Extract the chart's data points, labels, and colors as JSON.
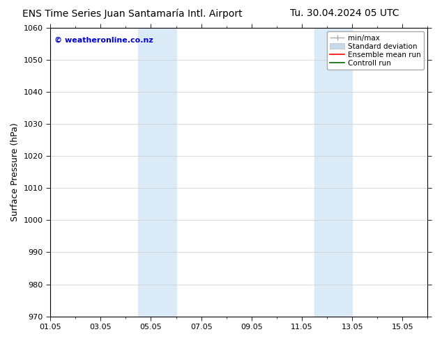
{
  "title_left": "ENS Time Series Juan Santamaría Intl. Airport",
  "title_right": "Tu. 30.04.2024 05 UTC",
  "ylabel": "Surface Pressure (hPa)",
  "ylim": [
    970,
    1060
  ],
  "yticks": [
    970,
    980,
    990,
    1000,
    1010,
    1020,
    1030,
    1040,
    1050,
    1060
  ],
  "xtick_labels": [
    "01.05",
    "03.05",
    "05.05",
    "07.05",
    "09.05",
    "11.05",
    "13.05",
    "15.05"
  ],
  "xtick_positions": [
    0,
    2,
    4,
    6,
    8,
    10,
    12,
    14
  ],
  "xlim": [
    0,
    15
  ],
  "shaded_regions": [
    {
      "x_start": 3.5,
      "x_end": 5.0,
      "color": "#daeaf7"
    },
    {
      "x_start": 10.5,
      "x_end": 12.0,
      "color": "#daeaf7"
    }
  ],
  "watermark_text": "© weatheronline.co.nz",
  "watermark_color": "#0000cc",
  "legend_items": [
    {
      "label": "min/max",
      "color": "#aaaaaa",
      "lw": 1.0
    },
    {
      "label": "Standard deviation",
      "color": "#c8daea",
      "lw": 5
    },
    {
      "label": "Ensemble mean run",
      "color": "#ff0000",
      "lw": 1.2
    },
    {
      "label": "Controll run",
      "color": "#006600",
      "lw": 1.2
    }
  ],
  "bg_color": "#ffffff",
  "grid_color": "#cccccc",
  "title_fontsize": 10,
  "ylabel_fontsize": 9,
  "tick_fontsize": 8,
  "legend_fontsize": 7.5,
  "watermark_fontsize": 8
}
